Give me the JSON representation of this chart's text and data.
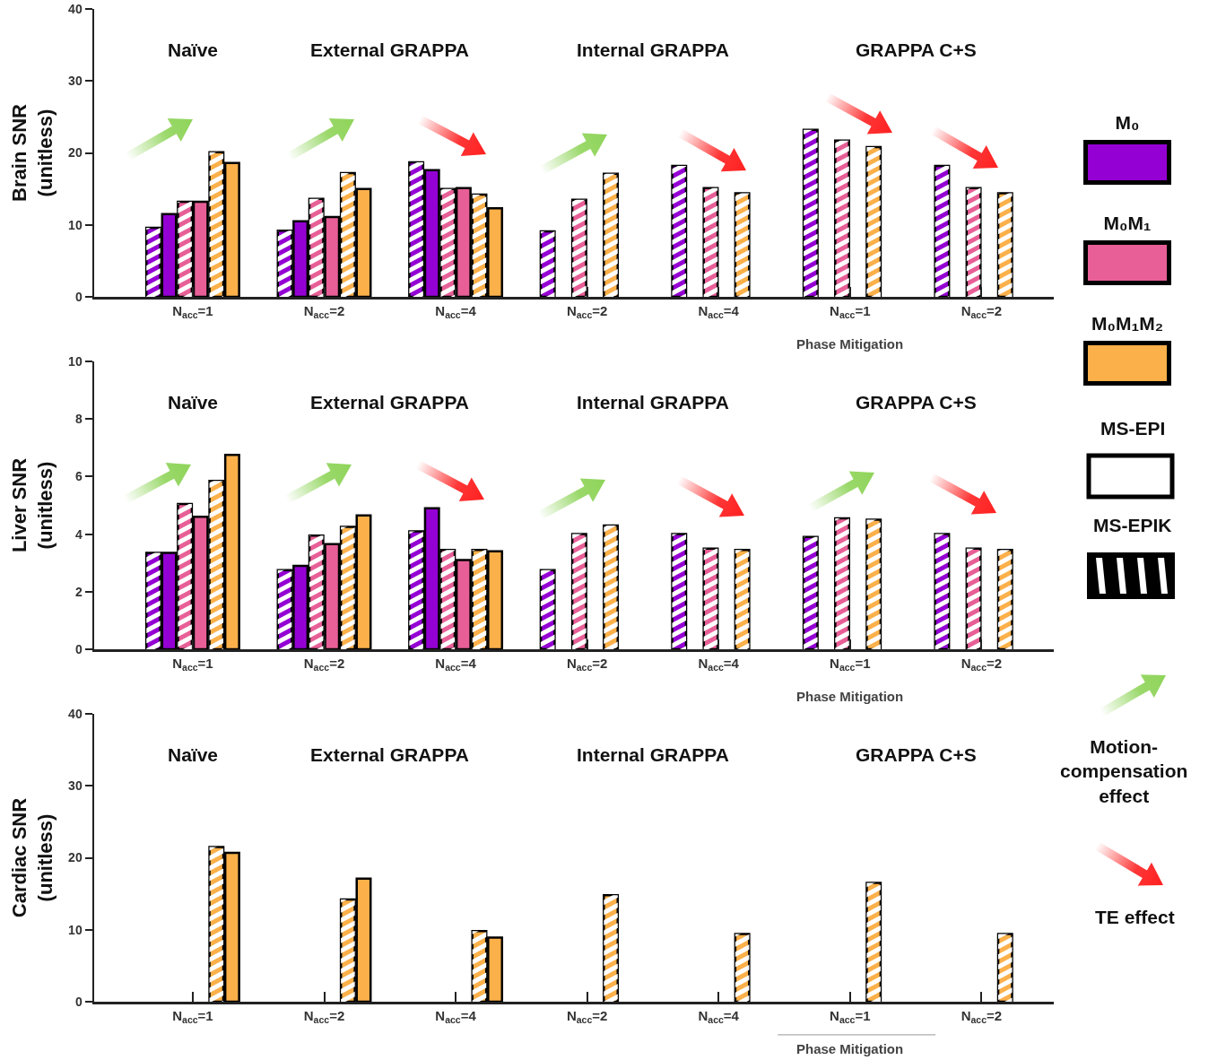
{
  "chart_data": [
    {
      "type": "bar",
      "ylabel": "Brain SNR\n(unitless)",
      "categories": [
        "N$_{acc}$=1",
        "N$_{acc}$=2",
        "N$_{acc}$=4",
        "N$_{acc}$=2",
        "N$_{acc}$=4",
        "N$_{acc}$=1",
        "N$_{acc}$=2"
      ],
      "ylim": [
        0,
        40
      ],
      "yticks": [
        0,
        10,
        20,
        30,
        40
      ],
      "legend": "right",
      "annotations": [
        "Naïve",
        "External GRAPPA",
        "Internal GRAPPA",
        "GRAPPA C+S",
        "Phase Mitigation"
      ],
      "series": [
        {
          "color": "#9400d3",
          "values": [
            9.6,
            9.2,
            18.7,
            9.1,
            18.2,
            23.2,
            18.2
          ]
        },
        {
          "name": "M₀",
          "color": "#9400d3",
          "values": [
            11.5,
            10.5,
            17.6,
            null,
            null,
            null,
            null
          ]
        },
        {
          "color": "#e75f96",
          "values": [
            13.2,
            13.6,
            15.0,
            13.5,
            15.1,
            21.7,
            15.1
          ]
        },
        {
          "name": "M₀M₁",
          "color": "#e75f96",
          "values": [
            13.2,
            11.1,
            15.1,
            null,
            null,
            null,
            null
          ]
        },
        {
          "color": "#fbb04a",
          "values": [
            20.1,
            17.2,
            14.2,
            17.1,
            14.4,
            20.8,
            14.4
          ]
        },
        {
          "name": "M₀M₁M₂",
          "color": "#fbb04a",
          "values": [
            18.6,
            15.0,
            12.3,
            null,
            null,
            null,
            null
          ]
        }
      ]
    },
    {
      "type": "bar",
      "ylabel": "Liver SNR\n(unitless)",
      "categories": [
        "N$_{acc}$=1",
        "N$_{acc}$=2",
        "N$_{acc}$=4",
        "N$_{acc}$=2",
        "N$_{acc}$=4",
        "N$_{acc}$=1",
        "N$_{acc}$=2"
      ],
      "ylim": [
        0,
        10
      ],
      "yticks": [
        0,
        2,
        4,
        6,
        8,
        10
      ],
      "annotations": [
        "Naïve",
        "External GRAPPA",
        "Internal GRAPPA",
        "GRAPPA C+S",
        "Phase Mitigation",
        "MS-EPI",
        "MS-EPIK"
      ],
      "series": [
        {
          "color": "#9400d3",
          "values": [
            3.35,
            2.75,
            4.1,
            2.75,
            4.0,
            3.9,
            4.0
          ]
        },
        {
          "color": "#9400d3",
          "values": [
            3.35,
            2.9,
            4.9,
            null,
            null,
            null,
            null
          ]
        },
        {
          "color": "#e75f96",
          "values": [
            5.05,
            3.95,
            3.45,
            4.0,
            3.5,
            4.55,
            3.5
          ]
        },
        {
          "color": "#e75f96",
          "values": [
            4.6,
            3.65,
            3.1,
            null,
            null,
            null,
            null
          ]
        },
        {
          "color": "#fbb04a",
          "values": [
            5.85,
            4.25,
            3.45,
            4.3,
            3.45,
            4.5,
            3.45
          ]
        },
        {
          "color": "#fbb04a",
          "values": [
            6.75,
            4.65,
            3.4,
            null,
            null,
            null,
            null
          ]
        }
      ]
    },
    {
      "type": "bar",
      "ylabel": "Cardiac SNR\n(unitless)",
      "categories": [
        "N$_{acc}$=1",
        "N$_{acc}$=2",
        "N$_{acc}$=4",
        "N$_{acc}$=2",
        "N$_{acc}$=4",
        "N$_{acc}$=1",
        "N$_{acc}$=2"
      ],
      "ylim": [
        0,
        40
      ],
      "yticks": [
        0,
        10,
        20,
        30,
        40
      ],
      "annotations": [
        "Naïve",
        "External GRAPPA",
        "Internal GRAPPA",
        "GRAPPA C+S",
        "Phase Mitigation",
        "Motion-\ncompensation\neffect",
        "TE effect"
      ],
      "series": [
        {
          "color": "#9400d3",
          "values": [
            null,
            null,
            null,
            null,
            null,
            null,
            null
          ]
        },
        {
          "color": "#9400d3",
          "values": [
            null,
            null,
            null,
            null,
            null,
            null,
            null
          ]
        },
        {
          "color": "#e75f96",
          "values": [
            null,
            null,
            null,
            null,
            null,
            null,
            null
          ]
        },
        {
          "color": "#e75f96",
          "values": [
            null,
            null,
            null,
            null,
            null,
            null,
            null
          ]
        },
        {
          "color": "#fbb04a",
          "values": [
            21.5,
            14.2,
            9.8,
            14.8,
            9.4,
            16.5,
            9.4
          ]
        },
        {
          "color": "#fbb04a",
          "values": [
            20.7,
            17.1,
            8.9,
            null,
            null,
            null,
            null
          ]
        }
      ]
    }
  ]
}
